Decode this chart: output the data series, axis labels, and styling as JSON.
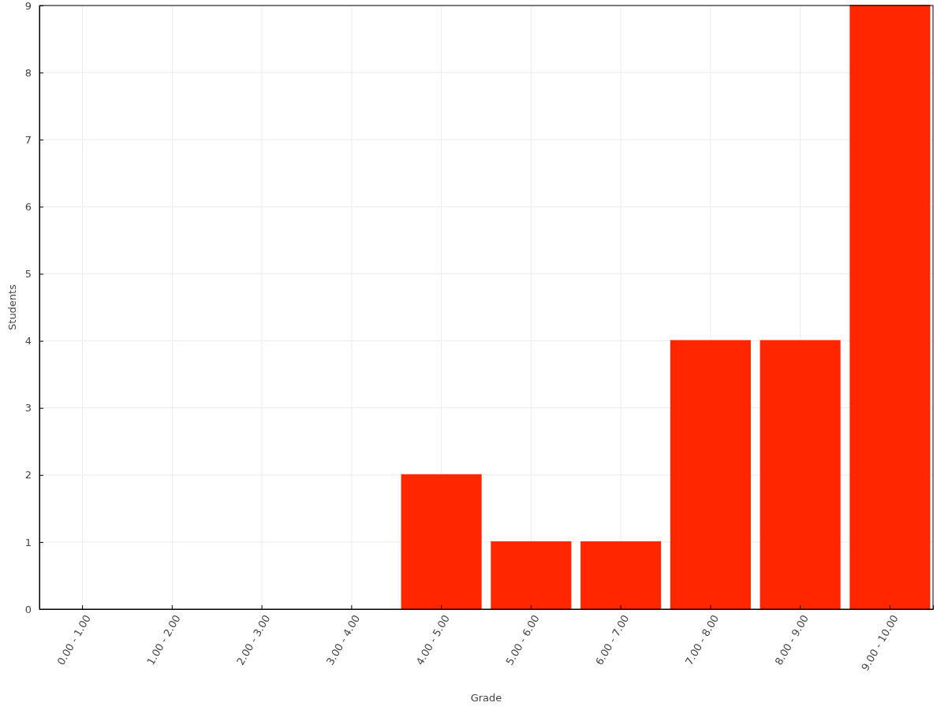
{
  "chart_data": {
    "type": "bar",
    "xlabel": "Grade",
    "ylabel": "Students",
    "categories": [
      "0.00 - 1.00",
      "1.00 - 2.00",
      "2.00 - 3.00",
      "3.00 - 4.00",
      "4.00 - 5.00",
      "5.00 - 6.00",
      "6.00 - 7.00",
      "7.00 - 8.00",
      "8.00 - 9.00",
      "9.00 - 10.00"
    ],
    "values": [
      0,
      0,
      0,
      0,
      2,
      1,
      1,
      4,
      4,
      9
    ],
    "color": "#ff2600",
    "ylim": [
      0,
      9
    ],
    "yticks": [
      0,
      1,
      2,
      3,
      4,
      5,
      6,
      7,
      8,
      9
    ],
    "grid": true
  }
}
